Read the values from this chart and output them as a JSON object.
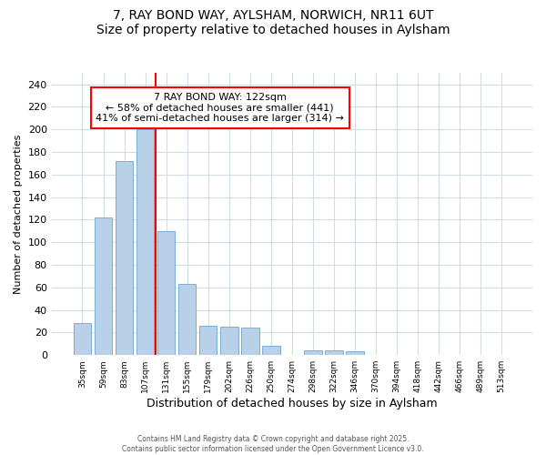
{
  "title1": "7, RAY BOND WAY, AYLSHAM, NORWICH, NR11 6UT",
  "title2": "Size of property relative to detached houses in Aylsham",
  "xlabel": "Distribution of detached houses by size in Aylsham",
  "ylabel": "Number of detached properties",
  "categories": [
    "35sqm",
    "59sqm",
    "83sqm",
    "107sqm",
    "131sqm",
    "155sqm",
    "179sqm",
    "202sqm",
    "226sqm",
    "250sqm",
    "274sqm",
    "298sqm",
    "322sqm",
    "346sqm",
    "370sqm",
    "394sqm",
    "418sqm",
    "442sqm",
    "466sqm",
    "489sqm",
    "513sqm"
  ],
  "values": [
    28,
    122,
    172,
    200,
    110,
    63,
    26,
    25,
    24,
    8,
    0,
    4,
    4,
    3,
    0,
    0,
    0,
    0,
    0,
    0,
    0
  ],
  "bar_color": "#b8d0e8",
  "bar_edge_color": "#7aadd4",
  "vline_color": "red",
  "vline_pos": 3.5,
  "annotation_line1": "7 RAY BOND WAY: 122sqm",
  "annotation_line2": "← 58% of detached houses are smaller (441)",
  "annotation_line3": "41% of semi-detached houses are larger (314) →",
  "annotation_box_color": "white",
  "annotation_box_edge": "red",
  "ylim": [
    0,
    250
  ],
  "yticks": [
    0,
    20,
    40,
    60,
    80,
    100,
    120,
    140,
    160,
    180,
    200,
    220,
    240
  ],
  "footer1": "Contains HM Land Registry data © Crown copyright and database right 2025.",
  "footer2": "Contains public sector information licensed under the Open Government Licence v3.0.",
  "bg_color": "#ffffff",
  "plot_bg_color": "#ffffff",
  "grid_color": "#d0dce8"
}
